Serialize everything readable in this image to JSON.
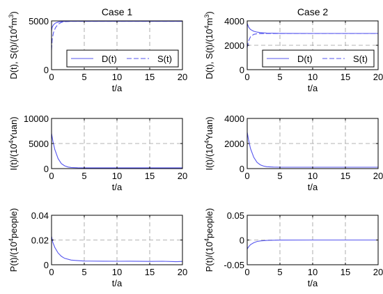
{
  "chart_data": [
    {
      "type": "line",
      "title": "Case 1",
      "xlabel": "t/a",
      "ylabel": {
        "pre": "D(t), S(t)/(10",
        "sup1": "4",
        "mid": "m",
        "sup2": "3",
        "post": ")"
      },
      "xlim": [
        0,
        20
      ],
      "ylim": [
        0,
        5000
      ],
      "xticks": [
        "0",
        "5",
        "10",
        "15",
        "20"
      ],
      "xtick_values": [
        0,
        5,
        10,
        15,
        20
      ],
      "yticks": [
        "0",
        "5000"
      ],
      "ytick_values": [
        0,
        5000
      ],
      "grid": true,
      "legend": {
        "placement": "bottom-right",
        "entries": [
          "D(t)",
          "S(t)"
        ]
      },
      "series": [
        {
          "name": "D(t)",
          "style": "solid",
          "color": "#5555ee",
          "x": [
            0,
            0.1,
            0.3,
            0.6,
            1,
            1.5,
            2,
            3,
            5,
            10,
            15,
            20
          ],
          "y": [
            4000,
            4350,
            4600,
            4780,
            4880,
            4930,
            4950,
            4960,
            4960,
            4960,
            4960,
            4960
          ]
        },
        {
          "name": "S(t)",
          "style": "dashed",
          "color": "#5555ee",
          "x": [
            0,
            0.1,
            0.3,
            0.6,
            1,
            1.5,
            2,
            3,
            5,
            10,
            15,
            20
          ],
          "y": [
            2000,
            3100,
            3800,
            4300,
            4650,
            4850,
            4920,
            4955,
            4960,
            4960,
            4960,
            4960
          ]
        }
      ]
    },
    {
      "type": "line",
      "title": "Case 2",
      "xlabel": "t/a",
      "ylabel": {
        "pre": "D(t), S(t)/(10",
        "sup1": "4",
        "mid": "m",
        "sup2": "3",
        "post": ")"
      },
      "xlim": [
        0,
        20
      ],
      "ylim": [
        0,
        4000
      ],
      "xticks": [
        "0",
        "5",
        "10",
        "15",
        "20"
      ],
      "xtick_values": [
        0,
        5,
        10,
        15,
        20
      ],
      "yticks": [
        "0",
        "2000",
        "4000"
      ],
      "ytick_values": [
        0,
        2000,
        4000
      ],
      "grid": true,
      "legend": {
        "placement": "bottom-right",
        "entries": [
          "D(t)",
          "S(t)"
        ]
      },
      "series": [
        {
          "name": "D(t)",
          "style": "solid",
          "color": "#5555ee",
          "x": [
            0,
            0.2,
            0.5,
            1,
            1.5,
            2,
            3,
            4,
            5,
            10,
            15,
            20
          ],
          "y": [
            3800,
            3500,
            3300,
            3150,
            3080,
            3040,
            3000,
            2990,
            2980,
            2970,
            2970,
            2970
          ]
        },
        {
          "name": "S(t)",
          "style": "dashed",
          "color": "#5555ee",
          "x": [
            0,
            0.2,
            0.5,
            1,
            1.5,
            2,
            3,
            4,
            5,
            10,
            15,
            20
          ],
          "y": [
            1800,
            2350,
            2700,
            2900,
            2950,
            2960,
            2965,
            2965,
            2965,
            2965,
            2965,
            2965
          ]
        }
      ]
    },
    {
      "type": "line",
      "title": "",
      "xlabel": "t/a",
      "ylabel": {
        "pre": "I(t)/(10",
        "sup1": "4",
        "mid": "Yuan",
        "sup2": "",
        "post": ")"
      },
      "xlim": [
        0,
        20
      ],
      "ylim": [
        0,
        10000
      ],
      "xticks": [
        "0",
        "5",
        "10",
        "15",
        "20"
      ],
      "xtick_values": [
        0,
        5,
        10,
        15,
        20
      ],
      "yticks": [
        "0",
        "5000",
        "10000"
      ],
      "ytick_values": [
        0,
        5000,
        10000
      ],
      "grid": true,
      "series": [
        {
          "name": "",
          "style": "solid",
          "color": "#5555ee",
          "x": [
            0,
            0.2,
            0.5,
            1,
            1.5,
            2,
            2.5,
            3,
            4,
            5,
            10,
            15,
            20
          ],
          "y": [
            7000,
            5500,
            3800,
            2000,
            1000,
            550,
            320,
            220,
            170,
            150,
            150,
            150,
            150
          ]
        }
      ]
    },
    {
      "type": "line",
      "title": "",
      "xlabel": "t/a",
      "ylabel": {
        "pre": "I(t)/(10",
        "sup1": "4",
        "mid": "Yuan",
        "sup2": "",
        "post": ")"
      },
      "xlim": [
        0,
        20
      ],
      "ylim": [
        0,
        4000
      ],
      "xticks": [
        "0",
        "5",
        "10",
        "15",
        "20"
      ],
      "xtick_values": [
        0,
        5,
        10,
        15,
        20
      ],
      "yticks": [
        "0",
        "2000",
        "4000"
      ],
      "ytick_values": [
        0,
        2000,
        4000
      ],
      "grid": true,
      "series": [
        {
          "name": "",
          "style": "solid",
          "color": "#5555ee",
          "x": [
            0,
            0.2,
            0.5,
            1,
            1.5,
            2,
            2.5,
            3,
            4,
            5,
            10,
            15,
            20
          ],
          "y": [
            2900,
            2300,
            1600,
            900,
            500,
            300,
            200,
            150,
            120,
            110,
            110,
            110,
            110
          ]
        }
      ]
    },
    {
      "type": "line",
      "title": "",
      "xlabel": "t/a",
      "ylabel": {
        "pre": "P(t)/(10",
        "sup1": "4",
        "mid": "people",
        "sup2": "",
        "post": ")"
      },
      "xlim": [
        0,
        20
      ],
      "ylim": [
        0,
        0.04
      ],
      "xticks": [
        "0",
        "5",
        "10",
        "15",
        "20"
      ],
      "xtick_values": [
        0,
        5,
        10,
        15,
        20
      ],
      "yticks": [
        "0",
        "0.02",
        "0.04"
      ],
      "ytick_values": [
        0,
        0.02,
        0.04
      ],
      "grid": true,
      "series": [
        {
          "name": "",
          "style": "solid",
          "color": "#5555ee",
          "x": [
            0,
            0.2,
            0.5,
            1,
            1.5,
            2,
            3,
            4,
            5,
            8,
            10,
            12,
            15,
            17,
            19,
            20
          ],
          "y": [
            0.023,
            0.018,
            0.014,
            0.0095,
            0.0068,
            0.0052,
            0.0038,
            0.0033,
            0.003,
            0.0029,
            0.0028,
            0.0029,
            0.0027,
            0.0028,
            0.0025,
            0.0027
          ]
        }
      ]
    },
    {
      "type": "line",
      "title": "",
      "xlabel": "t/a",
      "ylabel": {
        "pre": "P(t)/(10",
        "sup1": "4",
        "mid": "people",
        "sup2": "",
        "post": ")"
      },
      "xlim": [
        0,
        20
      ],
      "ylim": [
        -0.05,
        0.05
      ],
      "xticks": [
        "0",
        "5",
        "10",
        "15",
        "20"
      ],
      "xtick_values": [
        0,
        5,
        10,
        15,
        20
      ],
      "yticks": [
        "-0.05",
        "0",
        "0.05"
      ],
      "ytick_values": [
        -0.05,
        0,
        0.05
      ],
      "grid": true,
      "series": [
        {
          "name": "",
          "style": "solid",
          "color": "#5555ee",
          "x": [
            0,
            0.2,
            0.5,
            1,
            1.5,
            2,
            3,
            4,
            5,
            10,
            15,
            20
          ],
          "y": [
            -0.018,
            -0.014,
            -0.0095,
            -0.0055,
            -0.003,
            -0.0018,
            -0.0008,
            -0.0004,
            -0.0002,
            0,
            0,
            0
          ]
        }
      ]
    }
  ]
}
